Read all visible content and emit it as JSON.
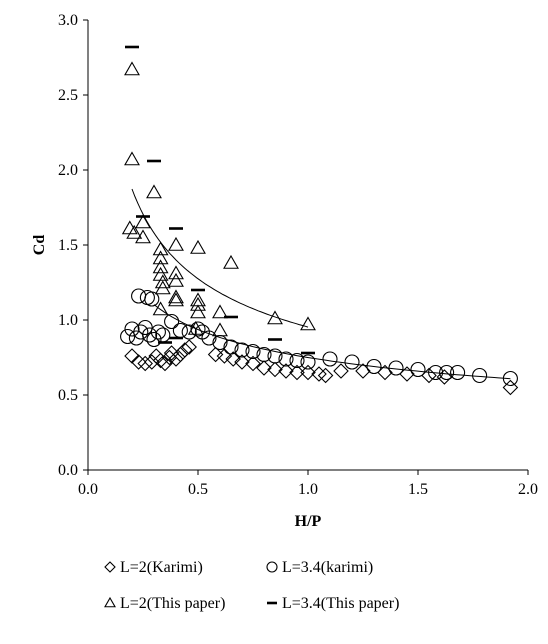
{
  "chart_data": {
    "type": "scatter",
    "title": "",
    "xlabel": "H/P",
    "ylabel": "Cd",
    "xlim": [
      0.0,
      2.0
    ],
    "ylim": [
      0.0,
      3.0
    ],
    "x_ticks": [
      "0.0",
      "0.5",
      "1.0",
      "1.5",
      "2.0"
    ],
    "y_ticks": [
      "0.0",
      "0.5",
      "1.0",
      "1.5",
      "2.0",
      "2.5",
      "3.0"
    ],
    "grid": false,
    "legend_position": "bottom",
    "series": [
      {
        "name": "L=2(Karimi)",
        "marker": "diamond",
        "color": "#000000",
        "points": [
          [
            0.2,
            0.76
          ],
          [
            0.23,
            0.72
          ],
          [
            0.26,
            0.71
          ],
          [
            0.29,
            0.72
          ],
          [
            0.31,
            0.76
          ],
          [
            0.33,
            0.73
          ],
          [
            0.35,
            0.71
          ],
          [
            0.37,
            0.75
          ],
          [
            0.38,
            0.78
          ],
          [
            0.4,
            0.74
          ],
          [
            0.42,
            0.77
          ],
          [
            0.44,
            0.8
          ],
          [
            0.46,
            0.82
          ],
          [
            0.58,
            0.77
          ],
          [
            0.62,
            0.76
          ],
          [
            0.66,
            0.74
          ],
          [
            0.7,
            0.72
          ],
          [
            0.75,
            0.71
          ],
          [
            0.8,
            0.68
          ],
          [
            0.85,
            0.67
          ],
          [
            0.9,
            0.66
          ],
          [
            0.95,
            0.65
          ],
          [
            1.0,
            0.65
          ],
          [
            1.05,
            0.64
          ],
          [
            1.08,
            0.63
          ],
          [
            1.15,
            0.66
          ],
          [
            1.25,
            0.66
          ],
          [
            1.35,
            0.65
          ],
          [
            1.45,
            0.64
          ],
          [
            1.55,
            0.63
          ],
          [
            1.62,
            0.62
          ],
          [
            1.92,
            0.55
          ]
        ]
      },
      {
        "name": "L=3.4(karimi)",
        "marker": "circle",
        "color": "#000000",
        "points": [
          [
            0.18,
            0.89
          ],
          [
            0.2,
            0.94
          ],
          [
            0.22,
            0.88
          ],
          [
            0.24,
            0.92
          ],
          [
            0.26,
            0.95
          ],
          [
            0.28,
            0.9
          ],
          [
            0.3,
            0.87
          ],
          [
            0.32,
            0.92
          ],
          [
            0.34,
            0.9
          ],
          [
            0.23,
            1.16
          ],
          [
            0.27,
            1.15
          ],
          [
            0.29,
            1.14
          ],
          [
            0.38,
            0.99
          ],
          [
            0.42,
            0.93
          ],
          [
            0.46,
            0.92
          ],
          [
            0.5,
            0.94
          ],
          [
            0.52,
            0.92
          ],
          [
            0.55,
            0.88
          ],
          [
            0.6,
            0.85
          ],
          [
            0.65,
            0.82
          ],
          [
            0.7,
            0.8
          ],
          [
            0.75,
            0.79
          ],
          [
            0.8,
            0.77
          ],
          [
            0.85,
            0.76
          ],
          [
            0.9,
            0.74
          ],
          [
            0.95,
            0.73
          ],
          [
            1.0,
            0.72
          ],
          [
            1.1,
            0.74
          ],
          [
            1.2,
            0.72
          ],
          [
            1.3,
            0.69
          ],
          [
            1.4,
            0.68
          ],
          [
            1.5,
            0.67
          ],
          [
            1.58,
            0.65
          ],
          [
            1.63,
            0.65
          ],
          [
            1.68,
            0.65
          ],
          [
            1.78,
            0.63
          ],
          [
            1.92,
            0.61
          ]
        ]
      },
      {
        "name": "L=2(This paper)",
        "marker": "triangle",
        "color": "#000000",
        "points": [
          [
            0.2,
            2.67
          ],
          [
            0.2,
            2.07
          ],
          [
            0.25,
            1.65
          ],
          [
            0.19,
            1.61
          ],
          [
            0.21,
            1.58
          ],
          [
            0.25,
            1.55
          ],
          [
            0.3,
            1.85
          ],
          [
            0.33,
            1.47
          ],
          [
            0.33,
            1.41
          ],
          [
            0.33,
            1.35
          ],
          [
            0.33,
            1.3
          ],
          [
            0.34,
            1.25
          ],
          [
            0.34,
            1.21
          ],
          [
            0.33,
            1.07
          ],
          [
            0.4,
            1.5
          ],
          [
            0.4,
            1.31
          ],
          [
            0.4,
            1.26
          ],
          [
            0.4,
            1.15
          ],
          [
            0.4,
            1.13
          ],
          [
            0.5,
            1.48
          ],
          [
            0.5,
            1.13
          ],
          [
            0.5,
            1.1
          ],
          [
            0.5,
            1.05
          ],
          [
            0.49,
            0.94
          ],
          [
            0.6,
            1.05
          ],
          [
            0.6,
            0.93
          ],
          [
            0.65,
            1.38
          ],
          [
            0.85,
            1.01
          ],
          [
            1.0,
            0.97
          ]
        ]
      },
      {
        "name": "L=3.4(This paper)",
        "marker": "dash",
        "color": "#000000",
        "points": [
          [
            0.2,
            2.82
          ],
          [
            0.3,
            2.06
          ],
          [
            0.25,
            1.69
          ],
          [
            0.4,
            1.61
          ],
          [
            0.5,
            1.2
          ],
          [
            0.65,
            1.02
          ],
          [
            0.85,
            0.87
          ],
          [
            1.0,
            0.78
          ],
          [
            0.4,
            0.88
          ],
          [
            0.35,
            0.85
          ]
        ]
      }
    ],
    "trendlines": [
      {
        "series": "L=2(This paper)",
        "kind": "power",
        "a": 0.953,
        "b": -0.42,
        "x_range": [
          0.2,
          1.0
        ]
      },
      {
        "series": "L=3.4(karimi)",
        "kind": "power",
        "a": 0.75,
        "b": -0.32,
        "x_range": [
          0.3,
          1.92
        ]
      }
    ]
  }
}
